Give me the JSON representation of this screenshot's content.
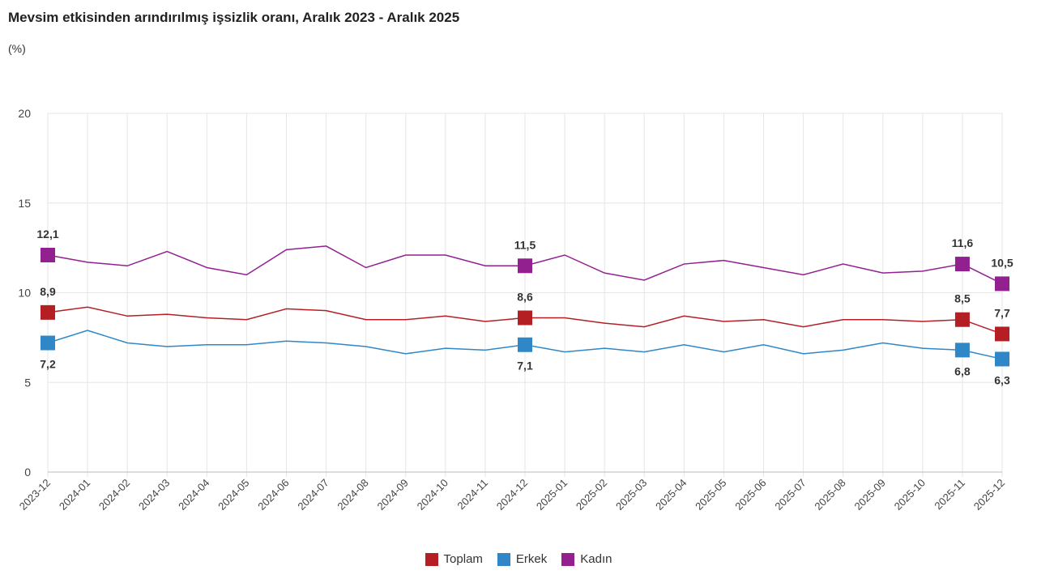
{
  "chart_data": {
    "type": "line",
    "title": "Mevsim etkisinden arındırılmış işsizlik oranı, Aralık 2023 - Aralık 2025",
    "unit": "(%)",
    "ylim": [
      0,
      20
    ],
    "yticks": [
      "0",
      "5",
      "10",
      "15",
      "20"
    ],
    "grid": true,
    "legend_position": "bottom",
    "x": [
      "2023-12",
      "2024-01",
      "2024-02",
      "2024-03",
      "2024-04",
      "2024-05",
      "2024-06",
      "2024-07",
      "2024-08",
      "2024-09",
      "2024-10",
      "2024-11",
      "2024-12",
      "2025-01",
      "2025-02",
      "2025-03",
      "2025-04",
      "2025-05",
      "2025-06",
      "2025-07",
      "2025-08",
      "2025-09",
      "2025-10",
      "2025-11",
      "2025-12"
    ],
    "labeled_points": [
      0,
      12,
      23,
      24
    ],
    "series": [
      {
        "name": "Toplam",
        "color": "#b41f24",
        "values": [
          8.9,
          9.2,
          8.7,
          8.8,
          8.6,
          8.5,
          9.1,
          9.0,
          8.5,
          8.5,
          8.7,
          8.4,
          8.6,
          8.6,
          8.3,
          8.1,
          8.7,
          8.4,
          8.5,
          8.1,
          8.5,
          8.5,
          8.4,
          8.5,
          7.7
        ],
        "labels": [
          "8,9",
          "8,6",
          "8,5",
          "7,7"
        ]
      },
      {
        "name": "Erkek",
        "color": "#2f87c8",
        "values": [
          7.2,
          7.9,
          7.2,
          7.0,
          7.1,
          7.1,
          7.3,
          7.2,
          7.0,
          6.6,
          6.9,
          6.8,
          7.1,
          6.7,
          6.9,
          6.7,
          7.1,
          6.7,
          7.1,
          6.6,
          6.8,
          7.2,
          6.9,
          6.8,
          6.3
        ],
        "labels": [
          "7,2",
          "7,1",
          "6,8",
          "6,3"
        ]
      },
      {
        "name": "Kadın",
        "color": "#92208f",
        "values": [
          12.1,
          11.7,
          11.5,
          12.3,
          11.4,
          11.0,
          12.4,
          12.6,
          11.4,
          12.1,
          12.1,
          11.5,
          11.5,
          12.1,
          11.1,
          10.7,
          11.6,
          11.8,
          11.4,
          11.0,
          11.6,
          11.1,
          11.2,
          11.6,
          10.5
        ],
        "labels": [
          "12,1",
          "11,5",
          "11,6",
          "10,5"
        ]
      }
    ]
  }
}
